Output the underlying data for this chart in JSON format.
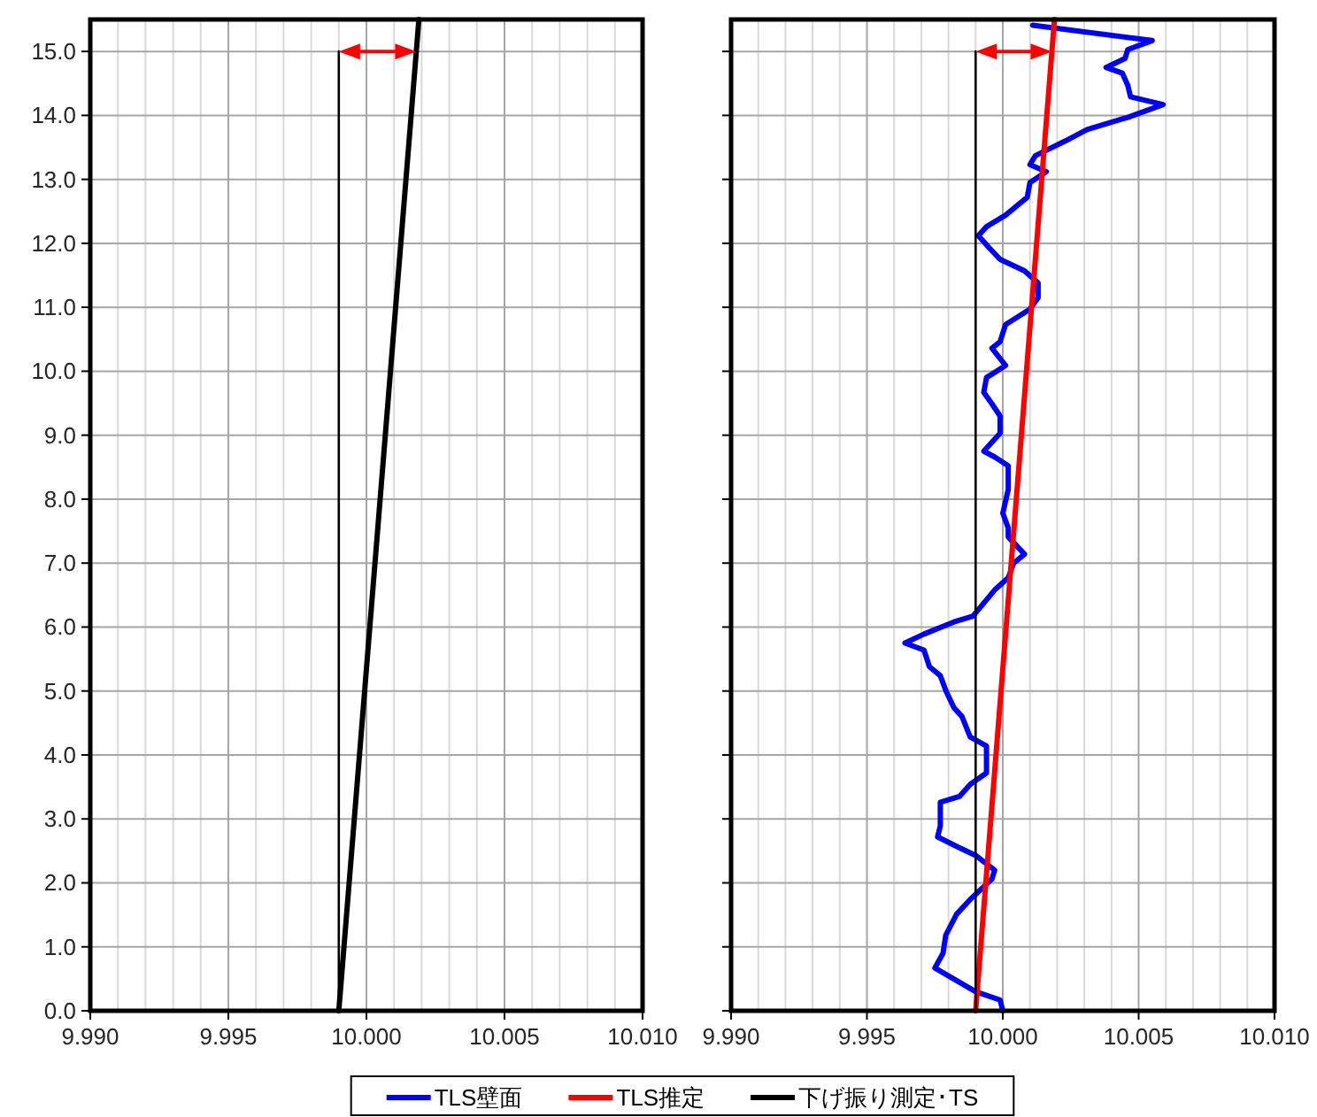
{
  "chart_data": [
    {
      "type": "line",
      "legend": "bottom",
      "grid": true,
      "xlim": [
        9.99,
        10.01
      ],
      "ylim": [
        0,
        15.5
      ],
      "xticks": [
        {
          "value": 9.99,
          "label": "9.990"
        },
        {
          "value": 9.991,
          "label": null
        },
        {
          "value": 9.992,
          "label": null
        },
        {
          "value": 9.993,
          "label": null
        },
        {
          "value": 9.994,
          "label": null
        },
        {
          "value": 9.995,
          "label": "9.995"
        },
        {
          "value": 9.996,
          "label": null
        },
        {
          "value": 9.997,
          "label": null
        },
        {
          "value": 9.998,
          "label": null
        },
        {
          "value": 9.999,
          "label": null
        },
        {
          "value": 10.0,
          "label": "10.000"
        },
        {
          "value": 10.001,
          "label": null
        },
        {
          "value": 10.002,
          "label": null
        },
        {
          "value": 10.003,
          "label": null
        },
        {
          "value": 10.004,
          "label": null
        },
        {
          "value": 10.005,
          "label": "10.005"
        },
        {
          "value": 10.006,
          "label": null
        },
        {
          "value": 10.007,
          "label": null
        },
        {
          "value": 10.008,
          "label": null
        },
        {
          "value": 10.009,
          "label": null
        },
        {
          "value": 10.01,
          "label": "10.010"
        }
      ],
      "yticks": [
        {
          "value": 0,
          "label": "0.0"
        },
        {
          "value": 1,
          "label": "1.0"
        },
        {
          "value": 2,
          "label": "2.0"
        },
        {
          "value": 3,
          "label": "3.0"
        },
        {
          "value": 4,
          "label": "4.0"
        },
        {
          "value": 5,
          "label": "5.0"
        },
        {
          "value": 6,
          "label": "6.0"
        },
        {
          "value": 7,
          "label": "7.0"
        },
        {
          "value": 8,
          "label": "8.0"
        },
        {
          "value": 9,
          "label": "9.0"
        },
        {
          "value": 10,
          "label": "10.0"
        },
        {
          "value": 11,
          "label": "11.0"
        },
        {
          "value": 12,
          "label": "12.0"
        },
        {
          "value": 13,
          "label": "13.0"
        },
        {
          "value": 14,
          "label": "14.0"
        },
        {
          "value": 15,
          "label": "15.0"
        }
      ],
      "series": [
        {
          "name": "下げ振り測定･TS",
          "color": "#000000",
          "x": [
            9.999,
            10.0019
          ],
          "values": [
            0,
            15.5
          ]
        },
        {
          "color": "#000000",
          "x": [
            9.999,
            9.999
          ],
          "values": [
            0,
            15
          ]
        }
      ]
    },
    {
      "type": "line",
      "legend": "bottom",
      "grid": true,
      "tick_labels": "x",
      "xlim": [
        9.99,
        10.01
      ],
      "ylim": [
        0,
        15.5
      ],
      "xticks": [
        {
          "value": 9.99,
          "label": "9.990"
        },
        {
          "value": 9.991,
          "label": null
        },
        {
          "value": 9.992,
          "label": null
        },
        {
          "value": 9.993,
          "label": null
        },
        {
          "value": 9.994,
          "label": null
        },
        {
          "value": 9.995,
          "label": "9.995"
        },
        {
          "value": 9.996,
          "label": null
        },
        {
          "value": 9.997,
          "label": null
        },
        {
          "value": 9.998,
          "label": null
        },
        {
          "value": 9.999,
          "label": null
        },
        {
          "value": 10.0,
          "label": "10.000"
        },
        {
          "value": 10.001,
          "label": null
        },
        {
          "value": 10.002,
          "label": null
        },
        {
          "value": 10.003,
          "label": null
        },
        {
          "value": 10.004,
          "label": null
        },
        {
          "value": 10.005,
          "label": "10.005"
        },
        {
          "value": 10.006,
          "label": null
        },
        {
          "value": 10.007,
          "label": null
        },
        {
          "value": 10.008,
          "label": null
        },
        {
          "value": 10.009,
          "label": null
        },
        {
          "value": 10.01,
          "label": "10.010"
        }
      ],
      "yticks": [
        {
          "value": 0,
          "label": null
        },
        {
          "value": 1,
          "label": null
        },
        {
          "value": 2,
          "label": null
        },
        {
          "value": 3,
          "label": null
        },
        {
          "value": 4,
          "label": null
        },
        {
          "value": 5,
          "label": null
        },
        {
          "value": 6,
          "label": null
        },
        {
          "value": 7,
          "label": null
        },
        {
          "value": 8,
          "label": null
        },
        {
          "value": 9,
          "label": null
        },
        {
          "value": 10,
          "label": null
        },
        {
          "value": 11,
          "label": null
        },
        {
          "value": 12,
          "label": null
        },
        {
          "value": 13,
          "label": null
        },
        {
          "value": 14,
          "label": null
        },
        {
          "value": 15,
          "label": null
        }
      ],
      "series": [
        {
          "name": "TLS壁面",
          "color": "#0000ff",
          "x": [
            10.0011,
            10.0055,
            10.0046,
            10.0045,
            10.0038,
            10.0044,
            10.0046,
            10.0047,
            10.0059,
            10.0046,
            10.0031,
            10.0023,
            10.0012,
            10.001,
            10.0016,
            10.001,
            10.0009,
            10.0001,
            9.9994,
            9.9991,
            9.9995,
            9.9999,
            10.0008,
            10.0013,
            10.0013,
            10.001,
            10.0001,
            9.9999,
            9.9996,
            10.0001,
            9.9994,
            9.9993,
            9.9996,
            9.9999,
            9.9999,
            9.9993,
            9.9997,
            10.0002,
            10.0002,
            10.0,
            10.0002,
            10.0002,
            10.0008,
            10.0004,
            10.0002,
            9.9997,
            9.9989,
            9.9982,
            9.9971,
            9.9964,
            9.9971,
            9.9973,
            9.9977,
            9.9979,
            9.9982,
            9.9985,
            9.9988,
            9.9994,
            9.9994,
            9.9988,
            9.9984,
            9.9977,
            9.9977,
            9.9976,
            9.9983,
            9.999,
            9.9997,
            9.9996,
            9.9988,
            9.9983,
            9.9979,
            9.9978,
            9.9975,
            9.999,
            9.9999,
            10.0
          ],
          "values": [
            15.41,
            15.17,
            15.03,
            14.89,
            14.75,
            14.66,
            14.47,
            14.29,
            14.17,
            13.97,
            13.78,
            13.6,
            13.37,
            13.23,
            13.12,
            12.95,
            12.72,
            12.44,
            12.26,
            12.12,
            11.93,
            11.75,
            11.57,
            11.38,
            11.15,
            10.97,
            10.73,
            10.46,
            10.36,
            10.09,
            9.9,
            9.67,
            9.49,
            9.3,
            9.03,
            8.75,
            8.66,
            8.52,
            8.15,
            7.78,
            7.55,
            7.41,
            7.14,
            7.0,
            6.77,
            6.58,
            6.17,
            6.08,
            5.89,
            5.75,
            5.64,
            5.38,
            5.24,
            5.01,
            4.74,
            4.6,
            4.28,
            4.14,
            3.72,
            3.54,
            3.35,
            3.26,
            2.89,
            2.72,
            2.57,
            2.43,
            2.2,
            2.06,
            1.74,
            1.51,
            1.18,
            0.9,
            0.67,
            0.3,
            0.17,
            0.0
          ]
        },
        {
          "name": "TLS推定",
          "color": "#ff0000",
          "x": [
            9.999,
            10.0019
          ],
          "values": [
            0,
            15.5
          ]
        },
        {
          "color": "#000000",
          "x": [
            9.999,
            9.999
          ],
          "values": [
            0,
            15
          ]
        }
      ]
    }
  ]
}
